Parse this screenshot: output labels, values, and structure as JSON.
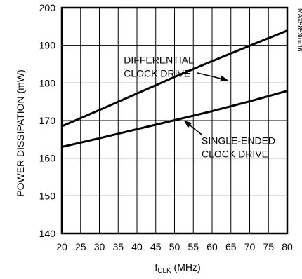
{
  "chart_data": {
    "type": "line",
    "title": "",
    "xlabel": {
      "main": "f",
      "sub": "CLK",
      "unit": " (MHz)"
    },
    "ylabel": "POWER DISSIPATION (mW)",
    "xlim": [
      20,
      80
    ],
    "ylim": [
      140,
      200
    ],
    "xticks": [
      20,
      25,
      30,
      35,
      40,
      45,
      50,
      55,
      60,
      65,
      70,
      75,
      80
    ],
    "yticks": [
      140,
      150,
      160,
      170,
      180,
      190,
      200
    ],
    "grid": true,
    "watermark": "MAX5853toc16",
    "series": [
      {
        "x": [
          20,
          30,
          40,
          50,
          60,
          70,
          80
        ],
        "y": [
          168.5,
          172.8,
          177.2,
          181.6,
          185.8,
          189.9,
          193.9
        ]
      },
      {
        "x": [
          20,
          30,
          40,
          50,
          60,
          70,
          80
        ],
        "y": [
          163.0,
          165.3,
          167.7,
          170.1,
          172.5,
          175.1,
          177.9
        ]
      }
    ],
    "annotations": [
      {
        "lines": [
          "DIFFERENTIAL",
          "CLOCK DRIVE"
        ],
        "text_at": [
          36.5,
          185.2
        ],
        "arrow_from": [
          56.0,
          182.7
        ],
        "arrow_to": [
          64.3,
          180.7
        ]
      },
      {
        "lines": [
          "SINGLE-ENDED",
          "CLOCK DRIVE"
        ],
        "text_at": [
          57.2,
          163.8
        ],
        "arrow_from": [
          57.3,
          166.2
        ],
        "arrow_to": [
          52.5,
          170.0
        ]
      }
    ]
  }
}
